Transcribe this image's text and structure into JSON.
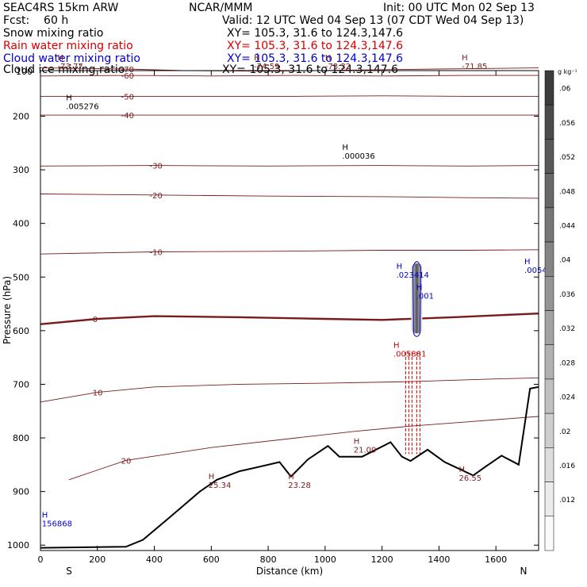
{
  "header": {
    "model": "SEAC4RS 15km ARW",
    "org": "NCAR/MMM",
    "init": "Init: 00 UTC Mon 02 Sep 13",
    "fcst": "Fcst:    60 h",
    "valid": "Valid: 12 UTC Wed 04 Sep 13 (07 CDT Wed 04 Sep 13)",
    "fields": [
      {
        "name": "Snow mixing ratio",
        "xy": "",
        "color": "#000000"
      },
      {
        "name": "Rain water mixing ratio",
        "xy": "XY= 105.3, 31.6 to 124.3,147.6",
        "color": "#d40000"
      },
      {
        "name": "Cloud water mixing ratio",
        "xy": "XY= 105.3, 31.6 to 124.3,147.6",
        "color": "#0000cc"
      },
      {
        "name": "Cloud ice mixing ratio",
        "xy": "XY= 105.3, 31.6 to 124.3,147.6",
        "color": "#000000"
      }
    ],
    "snow_xy": "XY= 105.3, 31.6 to 124.3,147.6"
  },
  "chart_data": {
    "type": "cross-section",
    "xlabel": "Distance (km)",
    "ylabel": "Pressure (hPa)",
    "xlim": [
      0,
      1750
    ],
    "ylim": [
      1010,
      115
    ],
    "x_ticks": [
      0,
      200,
      400,
      600,
      800,
      1000,
      1200,
      1400,
      1600
    ],
    "y_ticks": [
      200,
      300,
      400,
      500,
      600,
      700,
      800,
      900,
      1000
    ],
    "y_top_label": "100",
    "endpoints": {
      "left": "S",
      "right": "N"
    },
    "colorbar": {
      "unit": "g kg⁻¹",
      "ticks": [
        ".06",
        ".056",
        ".052",
        ".048",
        ".044",
        ".04",
        ".036",
        ".032",
        ".028",
        ".024",
        ".02",
        ".016",
        ".012"
      ]
    },
    "temperature_contours": [
      {
        "label": "-70",
        "values": [
          [
            0,
            110
          ],
          [
            300,
            112
          ],
          [
            500,
            115
          ],
          [
            800,
            116
          ],
          [
            1100,
            114
          ],
          [
            1400,
            112
          ],
          [
            1750,
            110
          ]
        ]
      },
      {
        "label": "-60",
        "values": [
          [
            0,
            125
          ],
          [
            300,
            124
          ],
          [
            600,
            125
          ],
          [
            900,
            124
          ],
          [
            1200,
            125
          ],
          [
            1500,
            124
          ],
          [
            1750,
            124
          ]
        ]
      },
      {
        "label": "-50",
        "values": [
          [
            0,
            163
          ],
          [
            300,
            163
          ],
          [
            600,
            163
          ],
          [
            900,
            163
          ],
          [
            1200,
            162
          ],
          [
            1500,
            163
          ],
          [
            1750,
            163
          ]
        ]
      },
      {
        "label": "-40",
        "values": [
          [
            0,
            198
          ],
          [
            300,
            198
          ],
          [
            600,
            198
          ],
          [
            900,
            198
          ],
          [
            1200,
            198
          ],
          [
            1500,
            198
          ],
          [
            1750,
            198
          ]
        ]
      },
      {
        "label": "-30",
        "values": [
          [
            0,
            293
          ],
          [
            400,
            292
          ],
          [
            800,
            293
          ],
          [
            1200,
            292
          ],
          [
            1500,
            293
          ],
          [
            1750,
            292
          ]
        ]
      },
      {
        "label": "-20",
        "values": [
          [
            0,
            345
          ],
          [
            400,
            347
          ],
          [
            800,
            349
          ],
          [
            1200,
            350
          ],
          [
            1500,
            352
          ],
          [
            1750,
            353
          ]
        ]
      },
      {
        "label": "-10",
        "values": [
          [
            0,
            457
          ],
          [
            400,
            453
          ],
          [
            800,
            452
          ],
          [
            1200,
            450
          ],
          [
            1500,
            450
          ],
          [
            1750,
            449
          ]
        ]
      },
      {
        "label": "0",
        "values": [
          [
            0,
            588
          ],
          [
            200,
            578
          ],
          [
            400,
            573
          ],
          [
            700,
            575
          ],
          [
            1000,
            578
          ],
          [
            1200,
            580
          ],
          [
            1450,
            575
          ],
          [
            1750,
            568
          ]
        ]
      },
      {
        "label": "10",
        "values": [
          [
            0,
            733
          ],
          [
            200,
            715
          ],
          [
            400,
            705
          ],
          [
            700,
            700
          ],
          [
            1000,
            698
          ],
          [
            1300,
            695
          ],
          [
            1600,
            690
          ],
          [
            1750,
            688
          ]
        ]
      },
      {
        "label": "20",
        "values": [
          [
            100,
            878
          ],
          [
            300,
            842
          ],
          [
            600,
            818
          ],
          [
            900,
            800
          ],
          [
            1100,
            788
          ],
          [
            1300,
            778
          ],
          [
            1500,
            770
          ],
          [
            1750,
            760
          ]
        ]
      }
    ],
    "terrain": [
      [
        0,
        1005
      ],
      [
        300,
        1003
      ],
      [
        360,
        990
      ],
      [
        450,
        950
      ],
      [
        560,
        900
      ],
      [
        620,
        878
      ],
      [
        700,
        862
      ],
      [
        760,
        855
      ],
      [
        840,
        845
      ],
      [
        880,
        872
      ],
      [
        940,
        840
      ],
      [
        1010,
        815
      ],
      [
        1050,
        835
      ],
      [
        1130,
        835
      ],
      [
        1230,
        808
      ],
      [
        1270,
        835
      ],
      [
        1300,
        843
      ],
      [
        1360,
        822
      ],
      [
        1420,
        845
      ],
      [
        1460,
        855
      ],
      [
        1520,
        870
      ],
      [
        1560,
        855
      ],
      [
        1620,
        833
      ],
      [
        1680,
        850
      ],
      [
        1720,
        708
      ],
      [
        1750,
        705
      ]
    ],
    "maxima_labels": [
      {
        "text": "-73.77",
        "x": 60,
        "p": 112
      },
      {
        "text": "-74.59",
        "x": 750,
        "p": 112
      },
      {
        "text": "-73.32",
        "x": 1000,
        "p": 112
      },
      {
        "text": "-71.85",
        "x": 1480,
        "p": 112
      },
      {
        "text": ".005276",
        "x": 90,
        "p": 187
      },
      {
        "text": ".000036",
        "x": 1060,
        "p": 279
      },
      {
        "text": ".023414",
        "x": 1250,
        "p": 501
      },
      {
        "text": ".001",
        "x": 1320,
        "p": 540
      },
      {
        "text": ".0054",
        "x": 1700,
        "p": 492
      },
      {
        "text": ".005881",
        "x": 1240,
        "p": 648
      },
      {
        "text": "21.09",
        "x": 1100,
        "p": 827
      },
      {
        "text": "26.55",
        "x": 1470,
        "p": 880
      },
      {
        "text": "25.34",
        "x": 590,
        "p": 893
      },
      {
        "text": "23.28",
        "x": 870,
        "p": 893
      },
      {
        "text": "156868",
        "x": 5,
        "p": 965
      }
    ],
    "cloud_water_max": {
      "x": 1322,
      "p_top": 460,
      "p_bottom": 605
    }
  }
}
